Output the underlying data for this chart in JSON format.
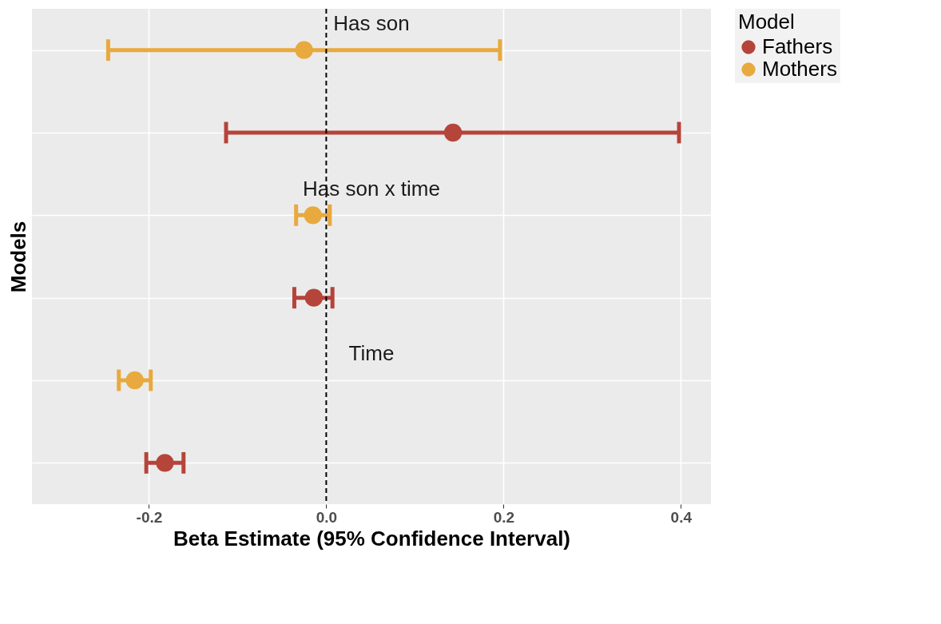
{
  "chart_data": {
    "type": "scatter",
    "orientation": "horizontal",
    "ylabel": "Models",
    "xlabel": "Beta Estimate (95% Confidence Interval)",
    "legend": "right",
    "legend_title": "Model",
    "annotations": [
      "Has son",
      "Has son x time",
      "Time"
    ],
    "categories": [
      null,
      null,
      null,
      null,
      null,
      null
    ],
    "marker": "circle",
    "grid": true,
    "tick_labels": "x",
    "xlim": [
      -0.332,
      0.434
    ],
    "xticks": [
      -0.2,
      {
        "value": 0,
        "label": "0.0"
      },
      0.2,
      0.4
    ],
    "ref_lines": [
      {
        "axis": "x",
        "value": 0,
        "line_style": "dashed",
        "color": "#000000"
      }
    ],
    "series": [
      {
        "name": "Fathers",
        "color": "#b5443a",
        "values": [
          null,
          0.143,
          null,
          -0.014,
          null,
          -0.182
        ],
        "errors": [
          null,
          [
            -0.113,
            0.398
          ],
          null,
          [
            -0.036,
            0.007
          ],
          null,
          [
            -0.203,
            -0.161
          ]
        ]
      },
      {
        "name": "Mothers",
        "color": "#e8a93e",
        "values": [
          -0.025,
          null,
          -0.015,
          null,
          -0.216,
          null
        ],
        "errors": [
          [
            -0.246,
            0.196
          ],
          null,
          [
            -0.034,
            0.004
          ],
          null,
          [
            -0.234,
            -0.198
          ],
          null
        ]
      }
    ]
  }
}
